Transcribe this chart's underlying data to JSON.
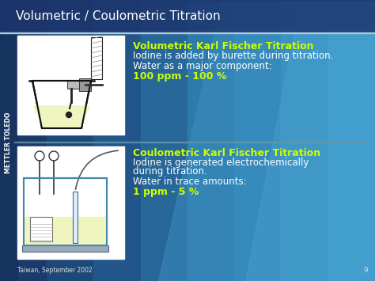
{
  "title": "Volumetric / Coulometric Titration",
  "title_color": "#ffffff",
  "title_fontsize": 11,
  "bg_left_color": "#1a3a6a",
  "bg_right_color": "#2a8aa0",
  "title_bar_color": "#1e4a7a",
  "vol_heading": "Volumetric Karl Fischer Titration",
  "vol_heading_color": "#ccff00",
  "vol_line1": "Iodine is added by burette during titration.",
  "vol_line2": "Water as a major component:",
  "vol_line3": "100 ppm - 100 %",
  "vol_line3_color": "#ccff00",
  "coul_heading": "Coulometric Karl Fischer Titration",
  "coul_heading_color": "#ccff00",
  "coul_line1": "Iodine is generated electrochemically",
  "coul_line2": "during titration.",
  "coul_line3": "Water in trace amounts:",
  "coul_line4": "1 ppm - 5 %",
  "coul_line4_color": "#ccff00",
  "text_color": "#ffffff",
  "text_fontsize": 8.5,
  "heading_fontsize": 9.0,
  "footer_text": "Taiwan, September 2002",
  "footer_page": "9",
  "footer_color": "#dddddd",
  "side_text": "METTLER TOLEDO",
  "side_text_color": "#ffffff",
  "divider_color": "#aaccdd",
  "liquid_color": "#f0f5c0",
  "diagram_line_color": "#111111",
  "white_box_color": "#ffffff",
  "mid_divider_color": "#6699aa"
}
